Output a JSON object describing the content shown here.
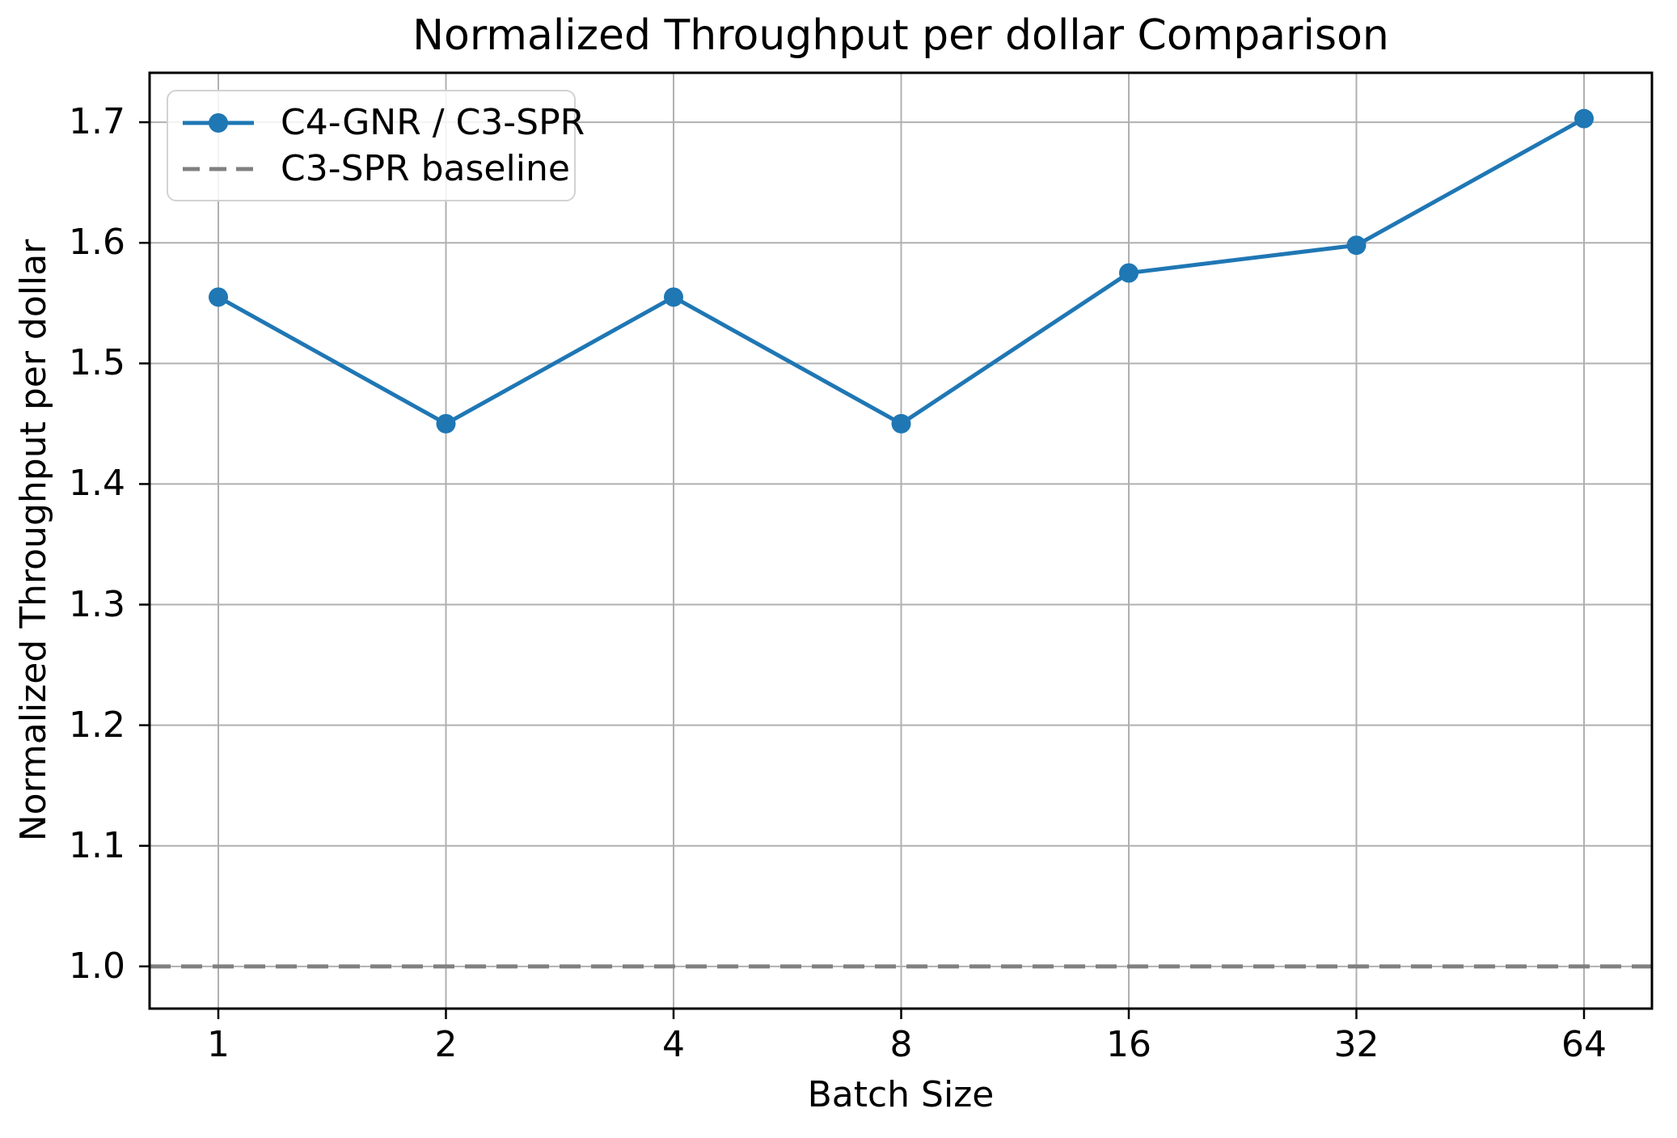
{
  "chart_data": {
    "type": "line",
    "title": "Normalized Throughput per dollar Comparison",
    "xlabel": "Batch Size",
    "ylabel": "Normalized Throughput per dollar",
    "x": [
      1,
      2,
      4,
      8,
      16,
      32,
      64
    ],
    "x_scale": "log2",
    "x_tick_labels": [
      "1",
      "2",
      "4",
      "8",
      "16",
      "32",
      "64"
    ],
    "y_ticks": [
      1.0,
      1.1,
      1.2,
      1.3,
      1.4,
      1.5,
      1.6,
      1.7
    ],
    "y_tick_labels": [
      "1.0",
      "1.1",
      "1.2",
      "1.3",
      "1.4",
      "1.5",
      "1.6",
      "1.7"
    ],
    "ylim": [
      0.965,
      1.741
    ],
    "grid": true,
    "legend_position": "upper left",
    "series": [
      {
        "name": "C4-GNR / C3-SPR",
        "style": "solid-line-circle-markers",
        "color": "#1f77b4",
        "values": [
          1.555,
          1.45,
          1.555,
          1.45,
          1.575,
          1.598,
          1.703
        ]
      },
      {
        "name": "C3-SPR baseline",
        "style": "dashed-horizontal-line",
        "color": "#808080",
        "baseline_value": 1.0
      }
    ]
  },
  "colors": {
    "line": "#1f77b4",
    "baseline": "#808080",
    "grid": "#b0b0b0",
    "spine": "#000000",
    "legend_border": "#d2d2d2",
    "background": "#ffffff"
  }
}
